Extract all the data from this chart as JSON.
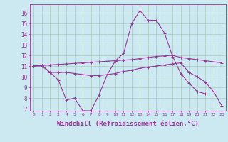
{
  "background_color": "#cce8f0",
  "grid_color": "#aaccbb",
  "line_color": "#993399",
  "xlabel": "Windchill (Refroidissement éolien,°C)",
  "xlabel_fontsize": 6.5,
  "ylim": [
    6.8,
    16.8
  ],
  "xlim": [
    -0.5,
    23.5
  ],
  "ytick_values": [
    7,
    8,
    9,
    10,
    11,
    12,
    13,
    14,
    15,
    16
  ],
  "line1_x": [
    0,
    1,
    2,
    3,
    4,
    5,
    6,
    7,
    8,
    9,
    10,
    11,
    12,
    13,
    14,
    15,
    16,
    17,
    18,
    19,
    20,
    21
  ],
  "line1_y": [
    11.0,
    11.1,
    10.4,
    9.7,
    7.8,
    8.0,
    6.8,
    6.8,
    8.3,
    10.2,
    11.5,
    12.2,
    15.0,
    16.2,
    15.3,
    15.3,
    14.1,
    11.9,
    10.3,
    9.4,
    8.6,
    8.4
  ],
  "line2_x": [
    0,
    1,
    2,
    3,
    4,
    5,
    6,
    7,
    8,
    9,
    10,
    11,
    12,
    13,
    14,
    15,
    16,
    17,
    18,
    19,
    20,
    21,
    22,
    23
  ],
  "line2_y": [
    11.0,
    11.0,
    10.4,
    10.4,
    10.4,
    10.3,
    10.2,
    10.1,
    10.1,
    10.2,
    10.3,
    10.5,
    10.6,
    10.8,
    10.9,
    11.0,
    11.1,
    11.2,
    11.3,
    10.4,
    10.0,
    9.5,
    8.6,
    7.3
  ],
  "line3_x": [
    0,
    1,
    2,
    3,
    4,
    5,
    6,
    7,
    8,
    9,
    10,
    11,
    12,
    13,
    14,
    15,
    16,
    17,
    18,
    19,
    20,
    21,
    22,
    23
  ],
  "line3_y": [
    11.0,
    11.05,
    11.1,
    11.15,
    11.2,
    11.25,
    11.3,
    11.35,
    11.4,
    11.45,
    11.5,
    11.55,
    11.6,
    11.7,
    11.8,
    11.9,
    11.95,
    12.0,
    11.8,
    11.7,
    11.6,
    11.5,
    11.4,
    11.3
  ]
}
